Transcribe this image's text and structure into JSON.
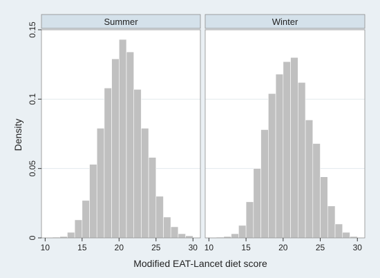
{
  "chart_data": {
    "type": "bar",
    "subtype": "histogram-faceted",
    "xlabel": "Modified EAT-Lancet diet score",
    "ylabel": "Density",
    "xlim": [
      9.5,
      31
    ],
    "ylim": [
      0,
      0.15
    ],
    "x_ticks": [
      "10",
      "15",
      "20",
      "25",
      "30"
    ],
    "x_tick_values": [
      10,
      15,
      20,
      25,
      30
    ],
    "y_ticks": [
      "0",
      "0.05",
      "0.1",
      "0.15"
    ],
    "y_tick_values": [
      0,
      0.05,
      0.1,
      0.15
    ],
    "grid": true,
    "colors": {
      "bar": "#c0c0c0",
      "bar_edge": "#ffffff",
      "panel_bg": "#ffffff",
      "strip_bg": "#d4e1ea",
      "frame": "#8c8c8c",
      "outer_bg": "#eaf0f4",
      "grid": "#e3e9ed"
    },
    "panels": [
      {
        "title": "Summer",
        "bins": [
          {
            "x0": 11,
            "x1": 12,
            "y": 0.0005
          },
          {
            "x0": 12,
            "x1": 13,
            "y": 0.001
          },
          {
            "x0": 13,
            "x1": 14,
            "y": 0.004
          },
          {
            "x0": 14,
            "x1": 15,
            "y": 0.013
          },
          {
            "x0": 15,
            "x1": 16,
            "y": 0.027
          },
          {
            "x0": 16,
            "x1": 17,
            "y": 0.053
          },
          {
            "x0": 17,
            "x1": 18,
            "y": 0.079
          },
          {
            "x0": 18,
            "x1": 19,
            "y": 0.108
          },
          {
            "x0": 19,
            "x1": 20,
            "y": 0.129
          },
          {
            "x0": 20,
            "x1": 21,
            "y": 0.143
          },
          {
            "x0": 21,
            "x1": 22,
            "y": 0.134
          },
          {
            "x0": 22,
            "x1": 23,
            "y": 0.107
          },
          {
            "x0": 23,
            "x1": 24,
            "y": 0.079
          },
          {
            "x0": 24,
            "x1": 25,
            "y": 0.058
          },
          {
            "x0": 25,
            "x1": 26,
            "y": 0.03
          },
          {
            "x0": 26,
            "x1": 27,
            "y": 0.015
          },
          {
            "x0": 27,
            "x1": 28,
            "y": 0.008
          },
          {
            "x0": 28,
            "x1": 29,
            "y": 0.003
          },
          {
            "x0": 29,
            "x1": 30,
            "y": 0.0015
          }
        ]
      },
      {
        "title": "Winter",
        "bins": [
          {
            "x0": 11,
            "x1": 12,
            "y": 0.0005
          },
          {
            "x0": 12,
            "x1": 13,
            "y": 0.001
          },
          {
            "x0": 13,
            "x1": 14,
            "y": 0.003
          },
          {
            "x0": 14,
            "x1": 15,
            "y": 0.009
          },
          {
            "x0": 15,
            "x1": 16,
            "y": 0.026
          },
          {
            "x0": 16,
            "x1": 17,
            "y": 0.05
          },
          {
            "x0": 17,
            "x1": 18,
            "y": 0.078
          },
          {
            "x0": 18,
            "x1": 19,
            "y": 0.104
          },
          {
            "x0": 19,
            "x1": 20,
            "y": 0.118
          },
          {
            "x0": 20,
            "x1": 21,
            "y": 0.127
          },
          {
            "x0": 21,
            "x1": 22,
            "y": 0.13
          },
          {
            "x0": 22,
            "x1": 23,
            "y": 0.112
          },
          {
            "x0": 23,
            "x1": 24,
            "y": 0.085
          },
          {
            "x0": 24,
            "x1": 25,
            "y": 0.068
          },
          {
            "x0": 25,
            "x1": 26,
            "y": 0.044
          },
          {
            "x0": 26,
            "x1": 27,
            "y": 0.023
          },
          {
            "x0": 27,
            "x1": 28,
            "y": 0.01
          },
          {
            "x0": 28,
            "x1": 29,
            "y": 0.004
          },
          {
            "x0": 29,
            "x1": 30,
            "y": 0.001
          }
        ]
      }
    ]
  }
}
